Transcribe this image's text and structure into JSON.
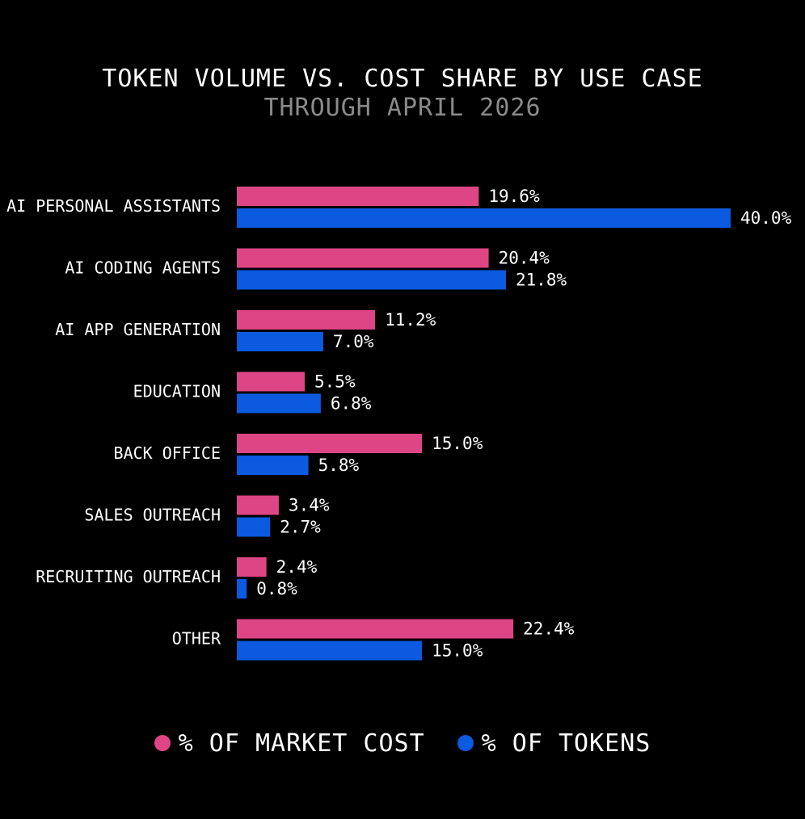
{
  "chart_data": {
    "type": "bar",
    "orientation": "horizontal",
    "title": "TOKEN VOLUME VS. COST SHARE BY USE CASE",
    "subtitle": "THROUGH APRIL 2026",
    "categories": [
      "AI PERSONAL ASSISTANTS",
      "AI CODING AGENTS",
      "AI APP GENERATION",
      "EDUCATION",
      "BACK OFFICE",
      "SALES OUTREACH",
      "RECRUITING OUTREACH",
      "OTHER"
    ],
    "series": [
      {
        "name": "% OF MARKET COST",
        "color": "#de4584",
        "values": [
          19.6,
          20.4,
          11.2,
          5.5,
          15.0,
          3.4,
          2.4,
          22.4
        ],
        "labels": [
          "19.6%",
          "20.4%",
          "11.2%",
          "5.5%",
          "15.0%",
          "3.4%",
          "2.4%",
          "22.4%"
        ]
      },
      {
        "name": "% OF TOKENS",
        "color": "#0b5ae0",
        "values": [
          40.0,
          21.8,
          7.0,
          6.8,
          5.8,
          2.7,
          0.8,
          15.0
        ],
        "labels": [
          "40.0%",
          "21.8%",
          "7.0%",
          "6.8%",
          "5.8%",
          "2.7%",
          "0.8%",
          "15.0%"
        ]
      }
    ],
    "xlim": [
      0,
      40
    ],
    "grid": false,
    "legend_position": "bottom-center"
  }
}
